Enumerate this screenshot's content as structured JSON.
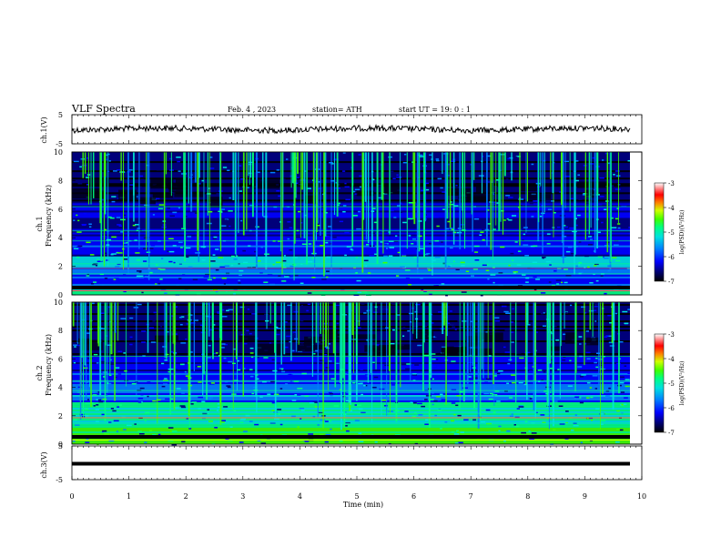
{
  "header": {
    "title": "VLF  Spectra",
    "date": "Feb. 4  , 2023",
    "station": "station= ATH",
    "start_ut": "start  UT  =    19: 0   : 1"
  },
  "colors": {
    "colormap": [
      "#000000",
      "#00007a",
      "#0000ff",
      "#0080ff",
      "#00e0e0",
      "#00ff80",
      "#40ff00",
      "#d0ff00",
      "#ff8000",
      "#ff0000",
      "#ffffff"
    ],
    "trace": "#000000",
    "axis": "#000000"
  },
  "chart_data": [
    {
      "type": "line",
      "panel": "ch1-waveform",
      "ylabel": "ch.1(V)",
      "ylim": [
        -5,
        5
      ],
      "yticks": [
        "5",
        "-5"
      ],
      "xlim": [
        0,
        10
      ],
      "series": [
        {
          "description": "noisy waveform near 0 V",
          "mean": 0,
          "amplitude": 0.6
        }
      ]
    },
    {
      "type": "heatmap",
      "panel": "ch1-spectrogram",
      "ylabel": "ch.1\nFrequency (kHz)",
      "ylabel_top": "ch.1",
      "ylabel_bottom": "Frequency  (kHz)",
      "ylim": [
        0,
        10
      ],
      "yticks": [
        "0",
        "2",
        "4",
        "6",
        "8",
        "10"
      ],
      "xlim": [
        0,
        10
      ],
      "colorbar": {
        "label": "log(PSD)(V²/Hz)",
        "ticks": [
          "-3",
          "-4",
          "-5",
          "-6",
          "-7"
        ],
        "range": [
          -7,
          -3
        ]
      }
    },
    {
      "type": "heatmap",
      "panel": "ch2-spectrogram",
      "ylabel_top": "ch.2",
      "ylabel_bottom": "Frequency  (kHz)",
      "ylim": [
        0,
        10
      ],
      "yticks": [
        "0",
        "2",
        "4",
        "6",
        "8",
        "10"
      ],
      "xlim": [
        0,
        10
      ],
      "colorbar": {
        "label": "log(PSD)(V²/Hz)",
        "ticks": [
          "-3",
          "-4",
          "-5",
          "-6",
          "-7"
        ],
        "range": [
          -7,
          -3
        ]
      }
    },
    {
      "type": "line",
      "panel": "ch3-waveform",
      "ylabel": "ch.3(V)",
      "ylim": [
        -5,
        5
      ],
      "yticks": [
        "5",
        "-5"
      ],
      "xlim": [
        0,
        10
      ],
      "series": [
        {
          "description": "flat line",
          "mean": 0,
          "amplitude": 0.05
        }
      ]
    }
  ],
  "xaxis": {
    "label": "Time  (min)",
    "ticks": [
      "0",
      "1",
      "2",
      "3",
      "4",
      "5",
      "6",
      "7",
      "8",
      "9",
      "10"
    ]
  }
}
